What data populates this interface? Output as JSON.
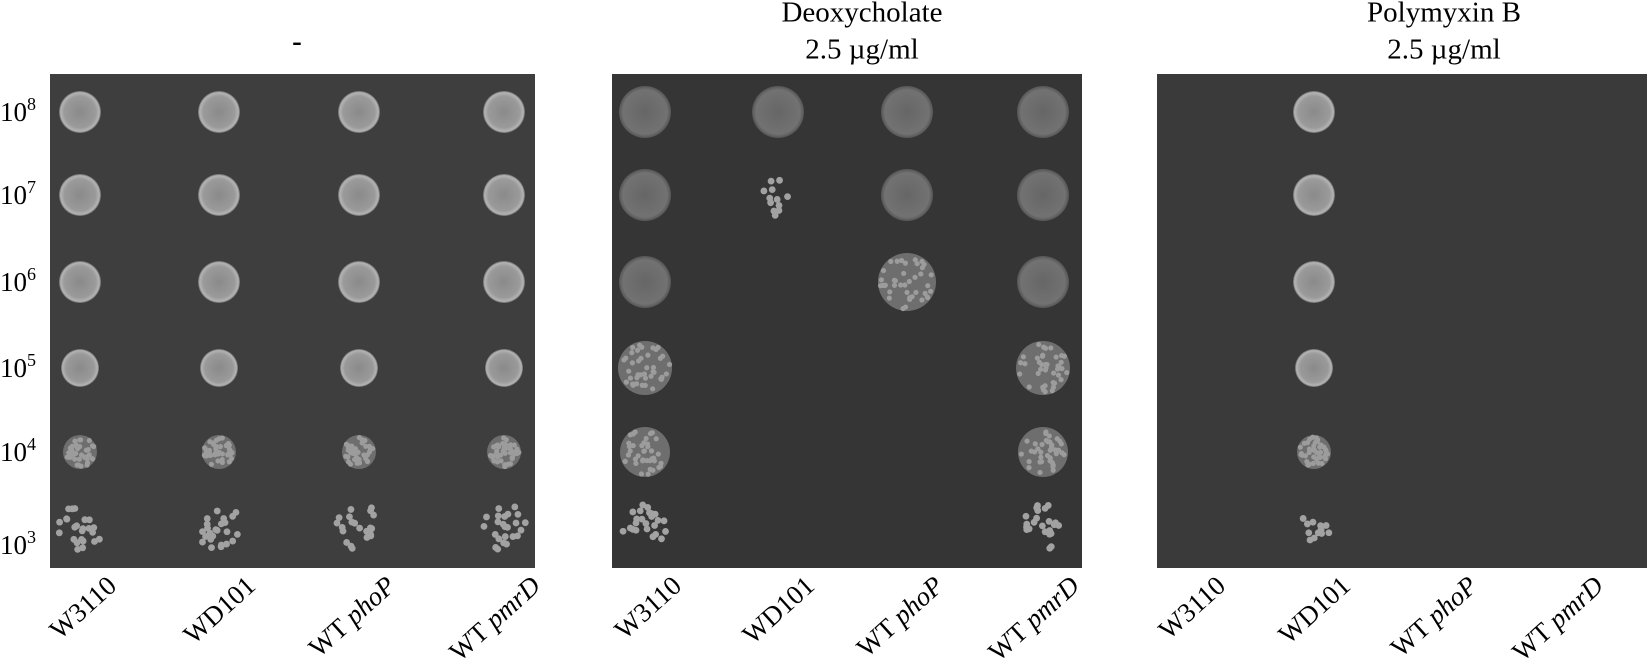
{
  "panels": [
    {
      "title": [
        "-"
      ]
    },
    {
      "title": [
        "Deoxycholate",
        "2.5 µg/ml"
      ]
    },
    {
      "title": [
        "Polymyxin B",
        "2.5 µg/ml"
      ]
    }
  ],
  "row_labels": [
    {
      "base": "10",
      "exponent": "8"
    },
    {
      "base": "10",
      "exponent": "7"
    },
    {
      "base": "10",
      "exponent": "6"
    },
    {
      "base": "10",
      "exponent": "5"
    },
    {
      "base": "10",
      "exponent": "4"
    },
    {
      "base": "10",
      "exponent": "3"
    }
  ],
  "strains": [
    {
      "prefix": "W3110"
    },
    {
      "prefix": "WD101"
    },
    {
      "prefix": "WT",
      "gene": "phoP"
    },
    {
      "prefix": "WT",
      "gene": "pmrD"
    }
  ]
}
